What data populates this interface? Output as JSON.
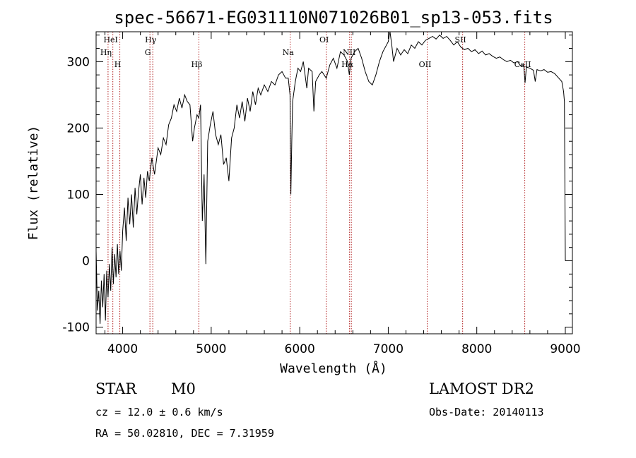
{
  "chart_data": {
    "type": "line",
    "title": "spec-56671-EG031110N071026B01_sp13-053.fits",
    "xlabel": "Wavelength (Å)",
    "ylabel": "Flux (relative)",
    "xlim": [
      3700,
      9080
    ],
    "ylim": [
      -110,
      345
    ],
    "xticks": [
      4000,
      5000,
      6000,
      7000,
      8000,
      9000
    ],
    "yticks": [
      -100,
      0,
      100,
      200,
      300
    ],
    "grid": false,
    "series": [
      {
        "points": [
          [
            3700,
            15
          ],
          [
            3715,
            -75
          ],
          [
            3730,
            -45
          ],
          [
            3745,
            -95
          ],
          [
            3760,
            -30
          ],
          [
            3775,
            -70
          ],
          [
            3790,
            -20
          ],
          [
            3805,
            -90
          ],
          [
            3820,
            -15
          ],
          [
            3835,
            -55
          ],
          [
            3850,
            -5
          ],
          [
            3865,
            -45
          ],
          [
            3880,
            20
          ],
          [
            3895,
            -35
          ],
          [
            3910,
            10
          ],
          [
            3925,
            -25
          ],
          [
            3940,
            25
          ],
          [
            3955,
            -20
          ],
          [
            3970,
            15
          ],
          [
            3985,
            -15
          ],
          [
            4000,
            45
          ],
          [
            4020,
            80
          ],
          [
            4040,
            30
          ],
          [
            4060,
            95
          ],
          [
            4080,
            55
          ],
          [
            4100,
            100
          ],
          [
            4120,
            50
          ],
          [
            4140,
            110
          ],
          [
            4160,
            70
          ],
          [
            4180,
            105
          ],
          [
            4200,
            130
          ],
          [
            4220,
            85
          ],
          [
            4240,
            125
          ],
          [
            4260,
            95
          ],
          [
            4280,
            135
          ],
          [
            4300,
            120
          ],
          [
            4330,
            155
          ],
          [
            4360,
            130
          ],
          [
            4400,
            170
          ],
          [
            4430,
            160
          ],
          [
            4460,
            185
          ],
          [
            4490,
            175
          ],
          [
            4520,
            205
          ],
          [
            4550,
            215
          ],
          [
            4580,
            235
          ],
          [
            4610,
            225
          ],
          [
            4640,
            245
          ],
          [
            4670,
            230
          ],
          [
            4700,
            250
          ],
          [
            4730,
            240
          ],
          [
            4760,
            235
          ],
          [
            4790,
            180
          ],
          [
            4810,
            200
          ],
          [
            4840,
            220
          ],
          [
            4860,
            215
          ],
          [
            4880,
            235
          ],
          [
            4900,
            60
          ],
          [
            4920,
            130
          ],
          [
            4940,
            -5
          ],
          [
            4960,
            180
          ],
          [
            4990,
            205
          ],
          [
            5020,
            225
          ],
          [
            5050,
            190
          ],
          [
            5080,
            175
          ],
          [
            5110,
            190
          ],
          [
            5140,
            145
          ],
          [
            5170,
            155
          ],
          [
            5200,
            120
          ],
          [
            5230,
            185
          ],
          [
            5260,
            200
          ],
          [
            5290,
            235
          ],
          [
            5320,
            215
          ],
          [
            5350,
            240
          ],
          [
            5380,
            210
          ],
          [
            5410,
            245
          ],
          [
            5440,
            225
          ],
          [
            5470,
            255
          ],
          [
            5500,
            235
          ],
          [
            5530,
            260
          ],
          [
            5560,
            250
          ],
          [
            5600,
            265
          ],
          [
            5640,
            255
          ],
          [
            5680,
            270
          ],
          [
            5720,
            265
          ],
          [
            5760,
            280
          ],
          [
            5800,
            285
          ],
          [
            5840,
            275
          ],
          [
            5870,
            275
          ],
          [
            5890,
            250
          ],
          [
            5900,
            100
          ],
          [
            5910,
            180
          ],
          [
            5920,
            240
          ],
          [
            5950,
            270
          ],
          [
            5980,
            290
          ],
          [
            6010,
            285
          ],
          [
            6040,
            300
          ],
          [
            6080,
            260
          ],
          [
            6100,
            290
          ],
          [
            6140,
            285
          ],
          [
            6160,
            225
          ],
          [
            6180,
            270
          ],
          [
            6220,
            280
          ],
          [
            6250,
            285
          ],
          [
            6300,
            275
          ],
          [
            6340,
            295
          ],
          [
            6380,
            305
          ],
          [
            6420,
            290
          ],
          [
            6460,
            315
          ],
          [
            6500,
            310
          ],
          [
            6540,
            300
          ],
          [
            6560,
            280
          ],
          [
            6580,
            305
          ],
          [
            6620,
            315
          ],
          [
            6660,
            320
          ],
          [
            6700,
            305
          ],
          [
            6740,
            285
          ],
          [
            6780,
            270
          ],
          [
            6820,
            265
          ],
          [
            6860,
            280
          ],
          [
            6900,
            300
          ],
          [
            6940,
            315
          ],
          [
            6980,
            325
          ],
          [
            7000,
            330
          ],
          [
            7020,
            345
          ],
          [
            7040,
            325
          ],
          [
            7060,
            300
          ],
          [
            7100,
            320
          ],
          [
            7140,
            310
          ],
          [
            7180,
            318
          ],
          [
            7220,
            312
          ],
          [
            7260,
            325
          ],
          [
            7300,
            320
          ],
          [
            7340,
            330
          ],
          [
            7380,
            325
          ],
          [
            7420,
            332
          ],
          [
            7460,
            335
          ],
          [
            7500,
            338
          ],
          [
            7540,
            334
          ],
          [
            7580,
            340
          ],
          [
            7620,
            335
          ],
          [
            7660,
            338
          ],
          [
            7700,
            332
          ],
          [
            7740,
            325
          ],
          [
            7780,
            330
          ],
          [
            7820,
            322
          ],
          [
            7860,
            318
          ],
          [
            7900,
            320
          ],
          [
            7940,
            315
          ],
          [
            7980,
            318
          ],
          [
            8020,
            312
          ],
          [
            8060,
            316
          ],
          [
            8100,
            310
          ],
          [
            8140,
            312
          ],
          [
            8180,
            308
          ],
          [
            8220,
            305
          ],
          [
            8260,
            307
          ],
          [
            8300,
            303
          ],
          [
            8340,
            300
          ],
          [
            8380,
            302
          ],
          [
            8420,
            298
          ],
          [
            8460,
            300
          ],
          [
            8500,
            293
          ],
          [
            8530,
            295
          ],
          [
            8545,
            268
          ],
          [
            8560,
            292
          ],
          [
            8600,
            290
          ],
          [
            8640,
            287
          ],
          [
            8660,
            270
          ],
          [
            8680,
            288
          ],
          [
            8720,
            286
          ],
          [
            8760,
            288
          ],
          [
            8800,
            284
          ],
          [
            8840,
            285
          ],
          [
            8880,
            282
          ],
          [
            8920,
            276
          ],
          [
            8960,
            270
          ],
          [
            8980,
            255
          ],
          [
            8990,
            240
          ],
          [
            9000,
            0
          ]
        ]
      }
    ],
    "lines": [
      {
        "label": "HeI",
        "x": 3889,
        "row": 1
      },
      {
        "label": "Hη",
        "x": 3835,
        "row": 2
      },
      {
        "label": "H",
        "x": 3968,
        "row": 3
      },
      {
        "label": "Hγ",
        "x": 4340,
        "row": 1
      },
      {
        "label": "G",
        "x": 4308,
        "row": 2
      },
      {
        "label": "Hβ",
        "x": 4861,
        "row": 3
      },
      {
        "label": "Na",
        "x": 5893,
        "row": 2
      },
      {
        "label": "OI",
        "x": 6300,
        "row": 1
      },
      {
        "label": "NII",
        "x": 6583,
        "row": 2
      },
      {
        "label": "Hα",
        "x": 6563,
        "row": 3
      },
      {
        "label": "SII",
        "x": 7840,
        "row": 1
      },
      {
        "label": "OII",
        "x": 7440,
        "row": 3
      },
      {
        "label": "CaII",
        "x": 8542,
        "row": 3
      }
    ]
  },
  "info": {
    "class_label": "STAR",
    "subclass": "M0",
    "redshift": "cz = 12.0 ± 0.6 km/s",
    "coords": "RA =  50.02810, DEC =   7.31959",
    "survey": "LAMOST DR2",
    "obs_date": "Obs-Date: 20140113"
  }
}
